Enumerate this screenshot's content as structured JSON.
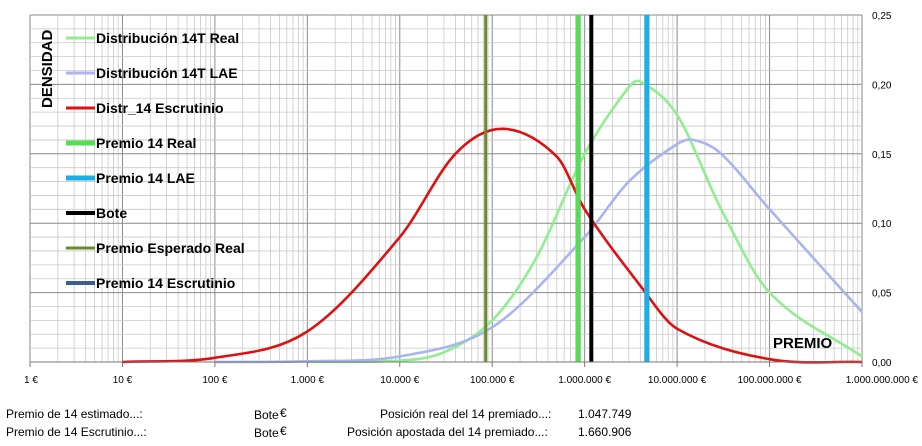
{
  "chart_data": {
    "type": "line",
    "x_scale": "log",
    "xlim": [
      1,
      1000000000
    ],
    "ylim": [
      0,
      0.25
    ],
    "y_ticks": [
      "0,00",
      "0,05",
      "0,10",
      "0,15",
      "0,20",
      "0,25"
    ],
    "y_tick_values": [
      0,
      0.05,
      0.1,
      0.15,
      0.2,
      0.25
    ],
    "x_ticks": [
      "1 €",
      "10 €",
      "100 €",
      "1.000 €",
      "10.000 €",
      "100.000 €",
      "1.000.000 €",
      "10.000.000 €",
      "100.000.000 €",
      "1.000.000.000 €"
    ],
    "x_tick_values": [
      1,
      10,
      100,
      1000,
      10000,
      100000,
      1000000,
      10000000,
      100000000,
      1000000000
    ],
    "ylabel": "DENSIDAD",
    "xlabel": "PREMIO",
    "grid": true,
    "legend_position": "top-left",
    "series": [
      {
        "name": "Distribución 14T Real",
        "color": "#90ee90",
        "x": [
          1000,
          10000,
          30000,
          100000,
          300000,
          1000000,
          3000000,
          4000000,
          10000000,
          30000000,
          100000000,
          1000000000
        ],
        "y": [
          0.0,
          0.001,
          0.007,
          0.03,
          0.075,
          0.15,
          0.198,
          0.202,
          0.178,
          0.11,
          0.05,
          0.004
        ]
      },
      {
        "name": "Distribución 14T LAE",
        "color": "#aab4ee",
        "x": [
          100,
          1000,
          10000,
          100000,
          1000000,
          3000000,
          10000000,
          15000000,
          30000000,
          100000000,
          1000000000
        ],
        "y": [
          0.0,
          0.0005,
          0.004,
          0.025,
          0.09,
          0.13,
          0.157,
          0.16,
          0.15,
          0.11,
          0.036
        ]
      },
      {
        "name": "Distr_14 Escrutinio",
        "color": "#dd1111",
        "x": [
          10,
          100,
          1000,
          10000,
          40000,
          130000,
          500000,
          1000000,
          4000000,
          10000000,
          100000000,
          1000000000
        ],
        "y": [
          0.0,
          0.003,
          0.022,
          0.09,
          0.15,
          0.168,
          0.148,
          0.11,
          0.055,
          0.024,
          0.002,
          0.0
        ]
      }
    ],
    "vertical_lines": [
      {
        "name": "Premio 14  Real",
        "color": "#55dd55",
        "x": 850000
      },
      {
        "name": "Premio 14 LAE",
        "color": "#1ab0e6",
        "x": 4700000
      },
      {
        "name": "Bote",
        "color": "#000000",
        "x": 1180000
      },
      {
        "name": "Premio Esperado Real",
        "color": "#6b8a2b",
        "x": 85000
      },
      {
        "name": "Premio 14 Escrutinio",
        "color": "#3a5f8a",
        "x": null
      }
    ]
  },
  "footer": {
    "left1": "Premio de 14 estimado...:",
    "left2": "Premio de 14 Escrutinio...:",
    "bote1": "Bote",
    "bote2": "Bote",
    "euro1": "€",
    "euro2": "€",
    "pos_real_label": "Posición real del 14 premiado...:",
    "pos_real_value": "1.047.749",
    "pos_apostada_label": "Posición apostada del 14 premiado...:",
    "pos_apostada_value": "1.660.906"
  }
}
